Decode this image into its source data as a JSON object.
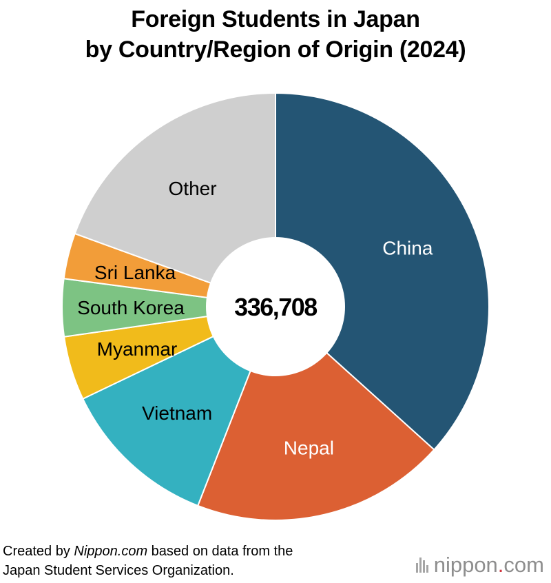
{
  "header": {
    "title_line1": "Foreign Students in Japan",
    "title_line2": "by Country/Region of Origin (2024)"
  },
  "chart_data": {
    "type": "pie",
    "donut": true,
    "center_label": "336,708",
    "total": 336708,
    "categories": [
      "China",
      "Nepal",
      "Vietnam",
      "Myanmar",
      "South Korea",
      "Sri Lanka",
      "Other"
    ],
    "values": [
      123485,
      64816,
      40323,
      16329,
      14641,
      11643,
      65471
    ],
    "colors": [
      "#245574",
      "#dc6033",
      "#34b1c0",
      "#f1bb1b",
      "#7dc383",
      "#f29d39",
      "#cfcfcf"
    ],
    "label_colors": [
      "#ffffff",
      "#ffffff",
      "#000000",
      "#000000",
      "#000000",
      "#000000",
      "#000000"
    ]
  },
  "footer": {
    "prefix": "Created by ",
    "source_name": "Nippon.com",
    "suffix": " based on data from the",
    "line2": "Japan Student Services Organization."
  },
  "logo": {
    "text_main": "nippon",
    "text_dot": ".",
    "text_tail": "com"
  }
}
